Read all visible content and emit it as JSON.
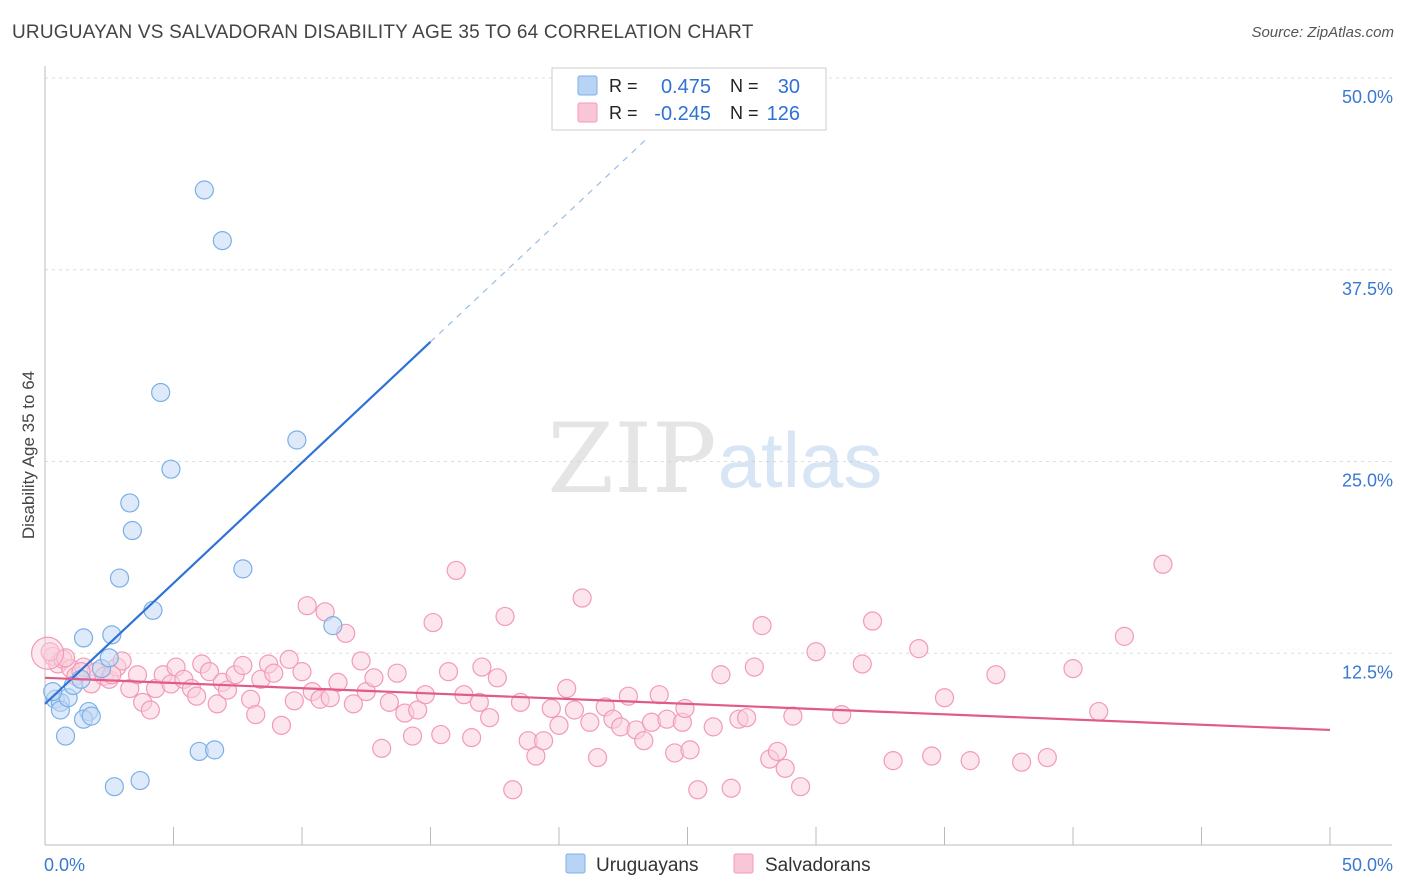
{
  "chart_data": {
    "type": "scatter",
    "title": "URUGUAYAN VS SALVADORAN DISABILITY AGE 35 TO 64 CORRELATION CHART",
    "source": "Source: ZipAtlas.com",
    "xlabel": "",
    "ylabel": "Disability Age 35 to 64",
    "xlim": [
      0,
      50
    ],
    "ylim": [
      0,
      50
    ],
    "x_tick_labels": [
      "0.0%",
      "50.0%"
    ],
    "y_ticks": [
      12.5,
      25.0,
      37.5,
      50.0
    ],
    "y_tick_labels": [
      "12.5%",
      "25.0%",
      "37.5%",
      "50.0%"
    ],
    "grid": true,
    "watermark": "ZIPatlas",
    "legend_stats": [
      {
        "r_label": "R =",
        "r_value": "0.475",
        "n_label": "N =",
        "n_value": "30"
      },
      {
        "r_label": "R =",
        "r_value": "-0.245",
        "n_label": "N =",
        "n_value": "126"
      }
    ],
    "series": [
      {
        "name": "Uruguayans",
        "color": "#7ab0e8",
        "line_color": "#2f72d6",
        "trend": {
          "x0": 0,
          "y0": 9.2,
          "x1": 15,
          "y1": 32.8,
          "dashed_to_x": 23.5
        },
        "points": [
          [
            0.4,
            9.5
          ],
          [
            0.6,
            9.3
          ],
          [
            0.6,
            8.8
          ],
          [
            0.9,
            9.6
          ],
          [
            0.8,
            7.1
          ],
          [
            1.1,
            10.4
          ],
          [
            1.4,
            10.8
          ],
          [
            1.5,
            13.5
          ],
          [
            1.7,
            8.7
          ],
          [
            1.5,
            8.2
          ],
          [
            1.8,
            8.4
          ],
          [
            2.2,
            11.5
          ],
          [
            2.6,
            13.7
          ],
          [
            2.7,
            3.8
          ],
          [
            2.9,
            17.4
          ],
          [
            3.3,
            22.3
          ],
          [
            3.4,
            20.5
          ],
          [
            3.7,
            4.2
          ],
          [
            4.2,
            15.3
          ],
          [
            4.5,
            29.5
          ],
          [
            4.9,
            24.5
          ],
          [
            6.0,
            6.1
          ],
          [
            6.2,
            42.7
          ],
          [
            6.6,
            6.2
          ],
          [
            6.9,
            39.4
          ],
          [
            7.7,
            18.0
          ],
          [
            9.8,
            26.4
          ],
          [
            11.2,
            14.3
          ],
          [
            0.3,
            10.0
          ],
          [
            2.5,
            12.2
          ]
        ]
      },
      {
        "name": "Salvadorans",
        "color": "#f39ab8",
        "line_color": "#e05a8a",
        "trend": {
          "x0": 0,
          "y0": 10.9,
          "x1": 50,
          "y1": 7.5
        },
        "points": [
          [
            0.3,
            12.3
          ],
          [
            0.5,
            11.8
          ],
          [
            0.7,
            12.1
          ],
          [
            1.0,
            11.5
          ],
          [
            1.2,
            11.0
          ],
          [
            1.5,
            11.6
          ],
          [
            1.8,
            10.5
          ],
          [
            2.0,
            11.3
          ],
          [
            2.3,
            11.0
          ],
          [
            2.5,
            10.8
          ],
          [
            2.8,
            11.6
          ],
          [
            3.0,
            12.0
          ],
          [
            3.3,
            10.2
          ],
          [
            3.6,
            11.1
          ],
          [
            3.8,
            9.3
          ],
          [
            4.1,
            8.8
          ],
          [
            4.3,
            10.2
          ],
          [
            4.6,
            11.1
          ],
          [
            4.9,
            10.5
          ],
          [
            5.1,
            11.6
          ],
          [
            5.4,
            10.8
          ],
          [
            5.7,
            10.2
          ],
          [
            5.9,
            9.7
          ],
          [
            6.1,
            11.8
          ],
          [
            6.4,
            11.3
          ],
          [
            6.7,
            9.2
          ],
          [
            6.9,
            10.6
          ],
          [
            7.1,
            10.1
          ],
          [
            7.4,
            11.1
          ],
          [
            7.7,
            11.7
          ],
          [
            8.0,
            9.5
          ],
          [
            8.2,
            8.5
          ],
          [
            8.4,
            10.8
          ],
          [
            8.7,
            11.8
          ],
          [
            8.9,
            11.2
          ],
          [
            9.2,
            7.8
          ],
          [
            9.5,
            12.1
          ],
          [
            9.7,
            9.4
          ],
          [
            10.0,
            11.3
          ],
          [
            10.2,
            15.6
          ],
          [
            10.4,
            10.0
          ],
          [
            10.7,
            9.5
          ],
          [
            10.9,
            15.2
          ],
          [
            11.1,
            9.6
          ],
          [
            11.4,
            10.6
          ],
          [
            11.7,
            13.8
          ],
          [
            12.0,
            9.2
          ],
          [
            12.3,
            12.0
          ],
          [
            12.5,
            10.0
          ],
          [
            12.8,
            10.9
          ],
          [
            13.1,
            6.3
          ],
          [
            13.4,
            9.3
          ],
          [
            13.7,
            11.2
          ],
          [
            14.0,
            8.6
          ],
          [
            14.3,
            7.1
          ],
          [
            14.5,
            8.8
          ],
          [
            14.8,
            9.8
          ],
          [
            15.1,
            14.5
          ],
          [
            15.4,
            7.2
          ],
          [
            15.7,
            11.3
          ],
          [
            16.0,
            17.9
          ],
          [
            16.3,
            9.8
          ],
          [
            16.6,
            7.0
          ],
          [
            17.0,
            11.6
          ],
          [
            17.3,
            8.3
          ],
          [
            17.6,
            10.9
          ],
          [
            17.9,
            14.9
          ],
          [
            18.2,
            3.6
          ],
          [
            18.5,
            9.3
          ],
          [
            18.8,
            6.8
          ],
          [
            19.1,
            5.8
          ],
          [
            19.4,
            6.8
          ],
          [
            19.7,
            8.9
          ],
          [
            20.0,
            7.8
          ],
          [
            20.3,
            10.2
          ],
          [
            20.6,
            8.8
          ],
          [
            20.9,
            16.1
          ],
          [
            21.2,
            8.0
          ],
          [
            21.5,
            5.7
          ],
          [
            21.8,
            9.0
          ],
          [
            22.1,
            8.2
          ],
          [
            22.4,
            7.7
          ],
          [
            22.7,
            9.7
          ],
          [
            23.0,
            7.5
          ],
          [
            23.3,
            6.8
          ],
          [
            23.6,
            8.0
          ],
          [
            23.9,
            9.8
          ],
          [
            24.2,
            8.2
          ],
          [
            24.5,
            6.0
          ],
          [
            24.8,
            8.0
          ],
          [
            25.1,
            6.2
          ],
          [
            25.4,
            3.6
          ],
          [
            26.0,
            7.7
          ],
          [
            26.3,
            11.1
          ],
          [
            26.7,
            3.7
          ],
          [
            27.0,
            8.2
          ],
          [
            27.3,
            8.3
          ],
          [
            27.6,
            11.6
          ],
          [
            27.9,
            14.3
          ],
          [
            28.2,
            5.6
          ],
          [
            28.5,
            6.1
          ],
          [
            28.8,
            5.0
          ],
          [
            29.1,
            8.4
          ],
          [
            29.4,
            3.8
          ],
          [
            30.0,
            12.6
          ],
          [
            31.0,
            8.5
          ],
          [
            31.8,
            11.8
          ],
          [
            32.2,
            14.6
          ],
          [
            33.0,
            5.5
          ],
          [
            34.0,
            12.8
          ],
          [
            35.0,
            9.6
          ],
          [
            36.0,
            5.5
          ],
          [
            37.0,
            11.1
          ],
          [
            38.0,
            5.4
          ],
          [
            39.0,
            5.7
          ],
          [
            40.0,
            11.5
          ],
          [
            41.0,
            8.7
          ],
          [
            42.0,
            13.6
          ],
          [
            43.5,
            18.3
          ],
          [
            0.2,
            12.6
          ],
          [
            0.8,
            12.2
          ],
          [
            1.4,
            11.3
          ],
          [
            2.6,
            11.1
          ],
          [
            16.9,
            9.3
          ],
          [
            24.9,
            8.9
          ],
          [
            34.5,
            5.8
          ]
        ]
      }
    ]
  }
}
